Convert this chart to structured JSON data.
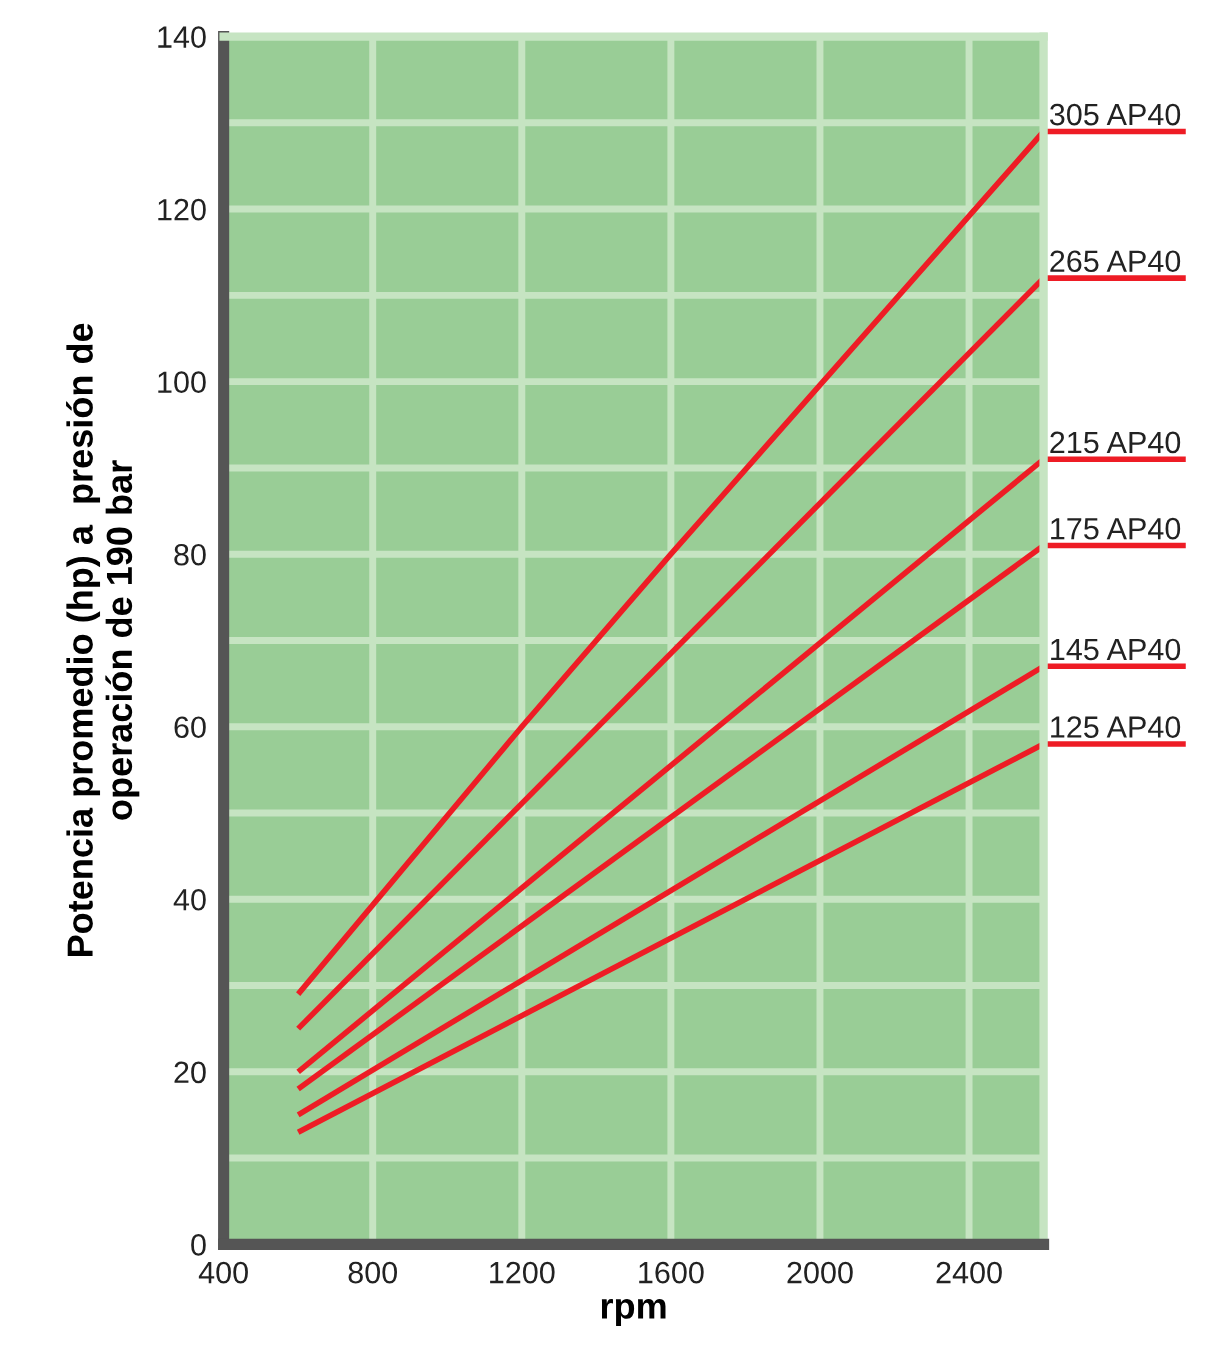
{
  "chart_data": {
    "type": "line",
    "xlabel": "rpm",
    "ylabel": "Potencia promedio (hp) a  presión de\noperación de 190 bar",
    "xlim": [
      400,
      2600
    ],
    "xticks": [
      400,
      800,
      1200,
      1600,
      2000,
      2400
    ],
    "ylim": [
      0,
      140
    ],
    "yticks": [
      0,
      {
        "value": 10,
        "label": null
      },
      20,
      {
        "value": 30,
        "label": null
      },
      40,
      {
        "value": 50,
        "label": null
      },
      60,
      {
        "value": 70,
        "label": null
      },
      80,
      {
        "value": 90,
        "label": null
      },
      100,
      {
        "value": 110,
        "label": null
      },
      120,
      {
        "value": 130,
        "label": null
      },
      140
    ],
    "grid": true,
    "legend": false,
    "marker": "none",
    "line_style": "solid",
    "series": [
      {
        "name": "305 AP40",
        "color": "#ee1c25",
        "x": [
          600,
          1200,
          1600,
          2600
        ],
        "values": [
          29,
          60,
          80,
          129
        ]
      },
      {
        "name": "265 AP40",
        "color": "#ee1c25",
        "x": [
          600,
          2600
        ],
        "values": [
          25,
          112
        ]
      },
      {
        "name": "215 AP40",
        "color": "#ee1c25",
        "x": [
          600,
          2600
        ],
        "values": [
          20,
          91
        ]
      },
      {
        "name": "175 AP40",
        "color": "#ee1c25",
        "x": [
          600,
          2600
        ],
        "values": [
          18,
          81
        ]
      },
      {
        "name": "145 AP40",
        "color": "#ee1c25",
        "x": [
          600,
          2600
        ],
        "values": [
          15,
          67
        ]
      },
      {
        "name": "125 AP40",
        "color": "#ee1c25",
        "x": [
          600,
          2600
        ],
        "values": [
          13,
          58
        ]
      }
    ]
  }
}
